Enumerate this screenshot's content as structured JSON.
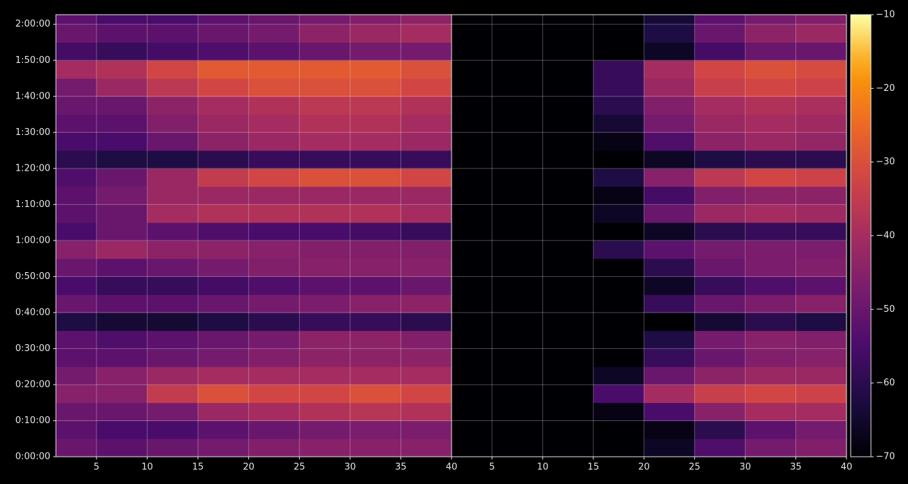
{
  "chart_data": {
    "type": "heatmap",
    "colormap": "inferno",
    "grid": true,
    "ylim": [
      0,
      7360
    ],
    "yticks": [
      {
        "value": 0,
        "label": "0:00:00"
      },
      {
        "value": 600,
        "label": "0:10:00"
      },
      {
        "value": 1200,
        "label": "0:20:00"
      },
      {
        "value": 1800,
        "label": "0:30:00"
      },
      {
        "value": 2400,
        "label": "0:40:00"
      },
      {
        "value": 3000,
        "label": "0:50:00"
      },
      {
        "value": 3600,
        "label": "1:00:00"
      },
      {
        "value": 4200,
        "label": "1:10:00"
      },
      {
        "value": 4800,
        "label": "1:20:00"
      },
      {
        "value": 5400,
        "label": "1:30:00"
      },
      {
        "value": 6000,
        "label": "1:40:00"
      },
      {
        "value": 6600,
        "label": "1:50:00"
      },
      {
        "value": 7200,
        "label": "2:00:00"
      }
    ],
    "y_bins": [
      0,
      300,
      600,
      900,
      1200,
      1500,
      1800,
      2100,
      2400,
      2700,
      3000,
      3300,
      3600,
      3900,
      4200,
      4500,
      4800,
      5100,
      5400,
      5700,
      6000,
      6300,
      6600,
      6900,
      7200,
      7500
    ],
    "zlim": [
      -70,
      -10
    ],
    "zticks": [
      {
        "value": -70,
        "label": "−70"
      },
      {
        "value": -60,
        "label": "−60"
      },
      {
        "value": -50,
        "label": "−50"
      },
      {
        "value": -40,
        "label": "−40"
      },
      {
        "value": -30,
        "label": "−30"
      },
      {
        "value": -20,
        "label": "−20"
      },
      {
        "value": -10,
        "label": "−10"
      }
    ],
    "panels": [
      {
        "xlim": [
          1,
          40
        ],
        "xticks": [
          5,
          10,
          15,
          20,
          25,
          30,
          35,
          40
        ],
        "x_bins": [
          1,
          5,
          10,
          15,
          20,
          25,
          30,
          35,
          40
        ],
        "values": [
          [
            -50,
            -52,
            -50,
            -48,
            -46,
            -45,
            -45,
            -45
          ],
          [
            -52,
            -55,
            -55,
            -52,
            -50,
            -48,
            -47,
            -47
          ],
          [
            -50,
            -50,
            -48,
            -42,
            -40,
            -38,
            -37,
            -38
          ],
          [
            -45,
            -45,
            -35,
            -30,
            -32,
            -32,
            -30,
            -32
          ],
          [
            -48,
            -45,
            -42,
            -40,
            -40,
            -40,
            -40,
            -40
          ],
          [
            -52,
            -52,
            -50,
            -48,
            -46,
            -44,
            -44,
            -44
          ],
          [
            -52,
            -54,
            -52,
            -50,
            -48,
            -44,
            -44,
            -46
          ],
          [
            -62,
            -64,
            -64,
            -62,
            -60,
            -58,
            -58,
            -60
          ],
          [
            -50,
            -52,
            -52,
            -50,
            -48,
            -47,
            -45,
            -44
          ],
          [
            -55,
            -58,
            -58,
            -56,
            -54,
            -52,
            -52,
            -50
          ],
          [
            -50,
            -52,
            -50,
            -48,
            -46,
            -45,
            -45,
            -45
          ],
          [
            -45,
            -42,
            -44,
            -44,
            -45,
            -46,
            -46,
            -46
          ],
          [
            -55,
            -50,
            -52,
            -54,
            -55,
            -55,
            -56,
            -58
          ],
          [
            -52,
            -50,
            -40,
            -38,
            -38,
            -38,
            -38,
            -40
          ],
          [
            -52,
            -48,
            -42,
            -42,
            -42,
            -42,
            -42,
            -42
          ],
          [
            -54,
            -50,
            -42,
            -35,
            -32,
            -30,
            -30,
            -32
          ],
          [
            -60,
            -62,
            -62,
            -60,
            -58,
            -58,
            -58,
            -58
          ],
          [
            -55,
            -55,
            -50,
            -44,
            -42,
            -40,
            -40,
            -42
          ],
          [
            -52,
            -52,
            -46,
            -42,
            -40,
            -38,
            -38,
            -40
          ],
          [
            -50,
            -50,
            -44,
            -40,
            -38,
            -36,
            -36,
            -38
          ],
          [
            -48,
            -42,
            -36,
            -32,
            -30,
            -30,
            -30,
            -32
          ],
          [
            -40,
            -38,
            -32,
            -28,
            -28,
            -28,
            -28,
            -30
          ],
          [
            -56,
            -58,
            -56,
            -54,
            -52,
            -50,
            -48,
            -48
          ],
          [
            -50,
            -52,
            -52,
            -50,
            -48,
            -44,
            -42,
            -40
          ],
          [
            -52,
            -55,
            -55,
            -52,
            -50,
            -48,
            -46,
            -44
          ]
        ]
      },
      {
        "xlim": [
          1,
          40
        ],
        "xticks": [
          5,
          10,
          15,
          20,
          25,
          30,
          35,
          40
        ],
        "x_bins": [
          1,
          5,
          10,
          15,
          20,
          25,
          30,
          35,
          40
        ],
        "values": [
          [
            -70,
            -70,
            -70,
            -70,
            -66,
            -54,
            -48,
            -46
          ],
          [
            -70,
            -70,
            -70,
            -70,
            -68,
            -60,
            -52,
            -48
          ],
          [
            -70,
            -70,
            -70,
            -68,
            -55,
            -45,
            -40,
            -40
          ],
          [
            -70,
            -70,
            -70,
            -55,
            -40,
            -34,
            -32,
            -33
          ],
          [
            -70,
            -70,
            -70,
            -66,
            -50,
            -44,
            -42,
            -42
          ],
          [
            -70,
            -70,
            -70,
            -70,
            -58,
            -50,
            -46,
            -45
          ],
          [
            -70,
            -70,
            -70,
            -70,
            -62,
            -48,
            -45,
            -46
          ],
          [
            -70,
            -70,
            -70,
            -70,
            -70,
            -64,
            -60,
            -62
          ],
          [
            -70,
            -70,
            -70,
            -70,
            -58,
            -50,
            -47,
            -45
          ],
          [
            -70,
            -70,
            -70,
            -70,
            -66,
            -58,
            -54,
            -52
          ],
          [
            -70,
            -70,
            -70,
            -70,
            -60,
            -50,
            -47,
            -46
          ],
          [
            -70,
            -70,
            -70,
            -60,
            -52,
            -48,
            -47,
            -47
          ],
          [
            -70,
            -70,
            -70,
            -70,
            -66,
            -60,
            -58,
            -58
          ],
          [
            -70,
            -70,
            -70,
            -66,
            -50,
            -42,
            -40,
            -41
          ],
          [
            -70,
            -70,
            -70,
            -68,
            -56,
            -46,
            -44,
            -44
          ],
          [
            -70,
            -70,
            -70,
            -62,
            -45,
            -36,
            -32,
            -33
          ],
          [
            -70,
            -70,
            -70,
            -70,
            -66,
            -62,
            -60,
            -60
          ],
          [
            -70,
            -70,
            -70,
            -68,
            -54,
            -44,
            -42,
            -43
          ],
          [
            -70,
            -70,
            -70,
            -64,
            -48,
            -42,
            -40,
            -41
          ],
          [
            -70,
            -70,
            -70,
            -60,
            -46,
            -40,
            -38,
            -39
          ],
          [
            -70,
            -70,
            -70,
            -58,
            -42,
            -34,
            -32,
            -33
          ],
          [
            -70,
            -70,
            -70,
            -58,
            -40,
            -32,
            -30,
            -31
          ],
          [
            -70,
            -70,
            -70,
            -70,
            -66,
            -56,
            -50,
            -50
          ],
          [
            -70,
            -70,
            -70,
            -70,
            -62,
            -50,
            -44,
            -42
          ],
          [
            -70,
            -70,
            -70,
            -70,
            -64,
            -52,
            -48,
            -46
          ]
        ]
      }
    ]
  }
}
